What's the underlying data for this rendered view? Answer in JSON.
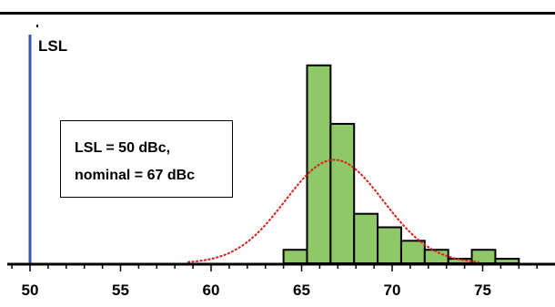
{
  "chart_data": {
    "type": "bar",
    "title": "",
    "xlabel": "",
    "ylabel": "",
    "xlim": [
      49,
      78.5
    ],
    "ylim": [
      0,
      48
    ],
    "x_ticks": [
      50,
      55,
      60,
      65,
      70,
      75
    ],
    "x_tick_labels": [
      "50",
      "55",
      "60",
      "65",
      "70",
      "75"
    ],
    "bin_width": 1.3,
    "bins": [
      {
        "x0": 64.0,
        "x1": 65.3,
        "value": 3
      },
      {
        "x0": 65.3,
        "x1": 66.6,
        "value": 44
      },
      {
        "x0": 66.6,
        "x1": 67.9,
        "value": 31
      },
      {
        "x0": 67.9,
        "x1": 69.2,
        "value": 11
      },
      {
        "x0": 69.2,
        "x1": 70.5,
        "value": 8
      },
      {
        "x0": 70.5,
        "x1": 71.8,
        "value": 5
      },
      {
        "x0": 71.8,
        "x1": 73.1,
        "value": 3
      },
      {
        "x0": 73.1,
        "x1": 74.4,
        "value": 1
      },
      {
        "x0": 74.4,
        "x1": 75.7,
        "value": 3
      },
      {
        "x0": 75.7,
        "x1": 77.0,
        "value": 1
      }
    ],
    "fit_curve": {
      "type": "normal",
      "mean": 66.8,
      "sd": 2.7,
      "peak": 23,
      "x_range": [
        58.7,
        74.8
      ]
    },
    "lsl_line": {
      "label": "LSL",
      "x": 50
    },
    "annotation": {
      "lines": [
        "LSL = 50 dBc,",
        "nominal = 67 dBc"
      ]
    },
    "colors": {
      "bar_fill": "#8fc866",
      "bar_stroke": "#000000",
      "curve": "#dd1f1f",
      "lsl_line": "#3a55b0",
      "axis": "#000000"
    }
  }
}
